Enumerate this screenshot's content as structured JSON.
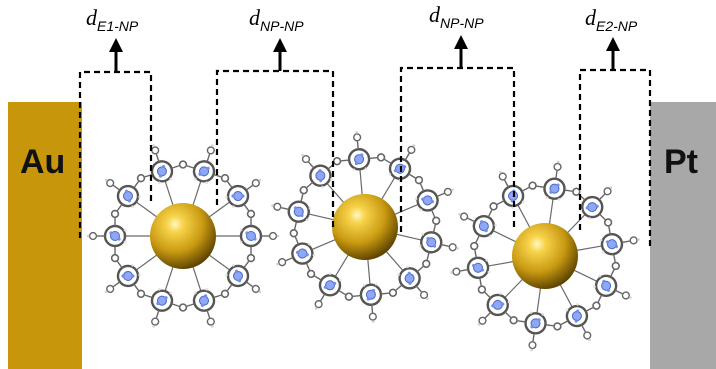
{
  "electrodes": {
    "left": {
      "label": "Au",
      "color": "#c8960a"
    },
    "right": {
      "label": "Pt",
      "color": "#a8a8a8"
    }
  },
  "distances": [
    {
      "symbol": "d",
      "subscript": "E1-NP"
    },
    {
      "symbol": "d",
      "subscript": "NP-NP"
    },
    {
      "symbol": "d",
      "subscript": "NP-NP"
    },
    {
      "symbol": "d",
      "subscript": "E2-NP"
    }
  ],
  "nanoparticles": {
    "count": 3,
    "color": "#d4a017"
  },
  "ligand_colors": {
    "carbon": "#5a5a5a",
    "nitrogen": "#7f9ef0",
    "hydrogen": "#dcdcdc"
  }
}
